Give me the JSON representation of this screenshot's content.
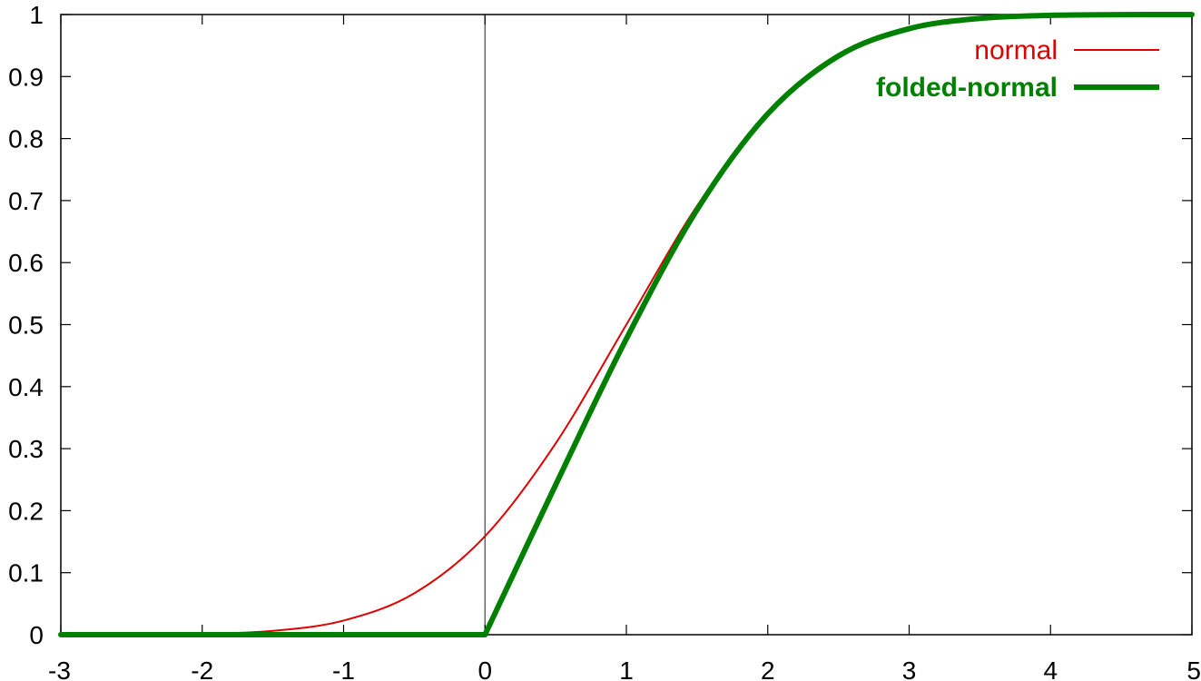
{
  "chart_data": {
    "type": "line",
    "title": "",
    "xlabel": "",
    "ylabel": "",
    "xlim": [
      -3,
      5
    ],
    "ylim": [
      0,
      1
    ],
    "x_ticks": [
      -3,
      -2,
      -1,
      0,
      1,
      2,
      3,
      4,
      5
    ],
    "x_tick_labels": [
      "-3",
      "-2",
      "-1",
      "0",
      "1",
      "2",
      "3",
      "4",
      "5"
    ],
    "y_ticks": [
      0,
      0.1,
      0.2,
      0.3,
      0.4,
      0.5,
      0.6,
      0.7,
      0.8,
      0.9,
      1
    ],
    "y_tick_labels": [
      "0",
      "0.1",
      "0.2",
      "0.3",
      "0.4",
      "0.5",
      "0.6",
      "0.7",
      "0.8",
      "0.9",
      "1"
    ],
    "grid": false,
    "zero_axis": "x = 0 vertical line",
    "legend_position": "top-right",
    "series": [
      {
        "name": "normal",
        "color": "#e00000",
        "x": [
          -3,
          -2.5,
          -2,
          -1.5,
          -1,
          -0.5,
          0,
          0.5,
          1,
          1.5,
          2,
          2.5,
          3,
          3.5,
          4,
          4.5,
          5
        ],
        "y": [
          3e-05,
          0.0002,
          0.0013,
          0.0062,
          0.0228,
          0.0668,
          0.1587,
          0.3085,
          0.5,
          0.6915,
          0.8413,
          0.9332,
          0.9772,
          0.9938,
          0.9987,
          0.9998,
          1.0
        ]
      },
      {
        "name": "folded-normal",
        "color": "#008000",
        "x": [
          -3,
          -2.5,
          -2,
          -1.5,
          -1,
          -0.5,
          0,
          0.5,
          1,
          1.5,
          2,
          2.5,
          3,
          3.5,
          4,
          4.5,
          5
        ],
        "y": [
          0,
          0,
          0,
          0,
          0,
          0,
          0,
          0.2417,
          0.4772,
          0.6853,
          0.8399,
          0.9332,
          0.9772,
          0.9938,
          0.9987,
          0.9998,
          1.0
        ]
      }
    ]
  }
}
